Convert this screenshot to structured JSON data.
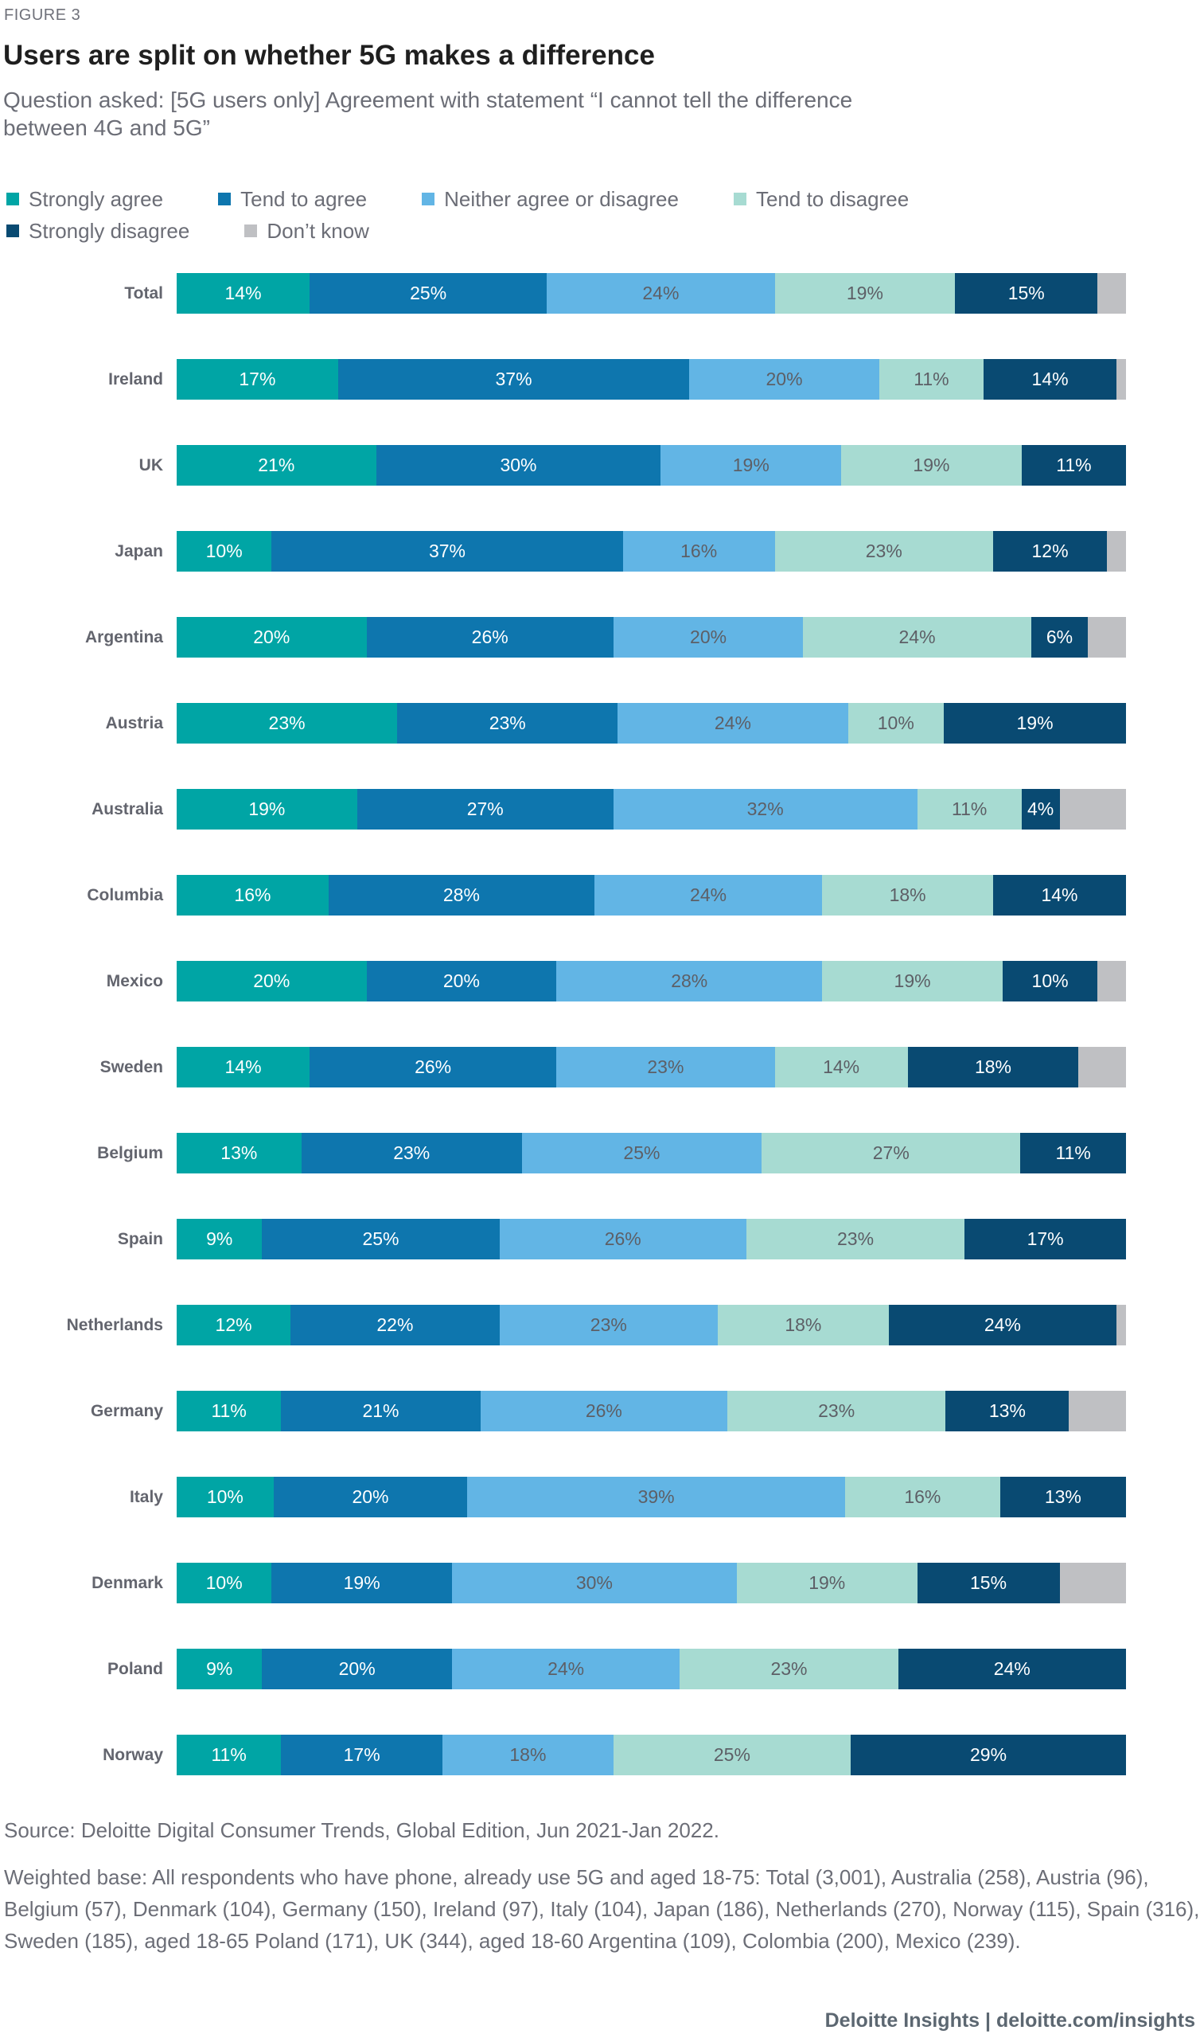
{
  "header": {
    "figure_label": "FIGURE 3",
    "title": "Users are split on whether 5G makes a difference",
    "subtitle_lines": [
      "Question asked: [5G users only] Agreement with statement “I cannot tell the difference",
      "between 4G and 5G”"
    ]
  },
  "colors": {
    "strongly_agree": "#00A5A5",
    "tend_to_agree": "#0E76AE",
    "neither": "#62B5E5",
    "tend_to_disagree": "#A7DBD2",
    "strongly_disagree": "#094A72",
    "dont_know": "#BFC0C3",
    "value_text_light": "#FFFFFF",
    "value_text_dark": "#5D5F66"
  },
  "legend": {
    "rows": [
      [
        {
          "label": "Strongly agree",
          "color": "#00A5A5"
        },
        {
          "label": "Tend to agree",
          "color": "#0E76AE"
        },
        {
          "label": "Neither agree or disagree",
          "color": "#62B5E5"
        },
        {
          "label": "Tend to disagree",
          "color": "#A7DBD2"
        }
      ],
      [
        {
          "label": "Strongly disagree",
          "color": "#094A72"
        },
        {
          "label": "Don’t know",
          "color": "#BFC0C3"
        }
      ]
    ]
  },
  "chart_data": {
    "type": "bar",
    "orientation": "horizontal",
    "stacked": true,
    "value_suffix": "%",
    "label_min": 4,
    "categories": [
      "Total",
      "Ireland",
      "UK",
      "Japan",
      "Argentina",
      "Austria",
      "Australia",
      "Columbia",
      "Mexico",
      "Sweden",
      "Belgium",
      "Spain",
      "Netherlands",
      "Germany",
      "Italy",
      "Denmark",
      "Poland",
      "Norway"
    ],
    "series": [
      {
        "name": "Strongly agree",
        "color": "#00A5A5",
        "text": "light",
        "show_labels": true,
        "values": [
          14,
          17,
          21,
          10,
          20,
          23,
          19,
          16,
          20,
          14,
          13,
          9,
          12,
          11,
          10,
          10,
          9,
          11
        ]
      },
      {
        "name": "Tend to agree",
        "color": "#0E76AE",
        "text": "light",
        "show_labels": true,
        "values": [
          25,
          37,
          30,
          37,
          26,
          23,
          27,
          28,
          20,
          26,
          23,
          25,
          22,
          21,
          20,
          19,
          20,
          17
        ]
      },
      {
        "name": "Neither agree or disagree",
        "color": "#62B5E5",
        "text": "dark",
        "show_labels": true,
        "values": [
          24,
          20,
          19,
          16,
          20,
          24,
          32,
          24,
          28,
          23,
          25,
          26,
          23,
          26,
          39,
          30,
          24,
          18
        ]
      },
      {
        "name": "Tend to disagree",
        "color": "#A7DBD2",
        "text": "dark",
        "show_labels": true,
        "values": [
          19,
          11,
          19,
          23,
          24,
          10,
          11,
          18,
          19,
          14,
          27,
          23,
          18,
          23,
          16,
          19,
          23,
          25
        ]
      },
      {
        "name": "Strongly disagree",
        "color": "#094A72",
        "text": "light",
        "show_labels": true,
        "values": [
          15,
          14,
          11,
          12,
          6,
          19,
          4,
          14,
          10,
          18,
          11,
          17,
          24,
          13,
          13,
          15,
          24,
          29
        ]
      },
      {
        "name": "Don’t know",
        "color": "#BFC0C3",
        "text": "dark",
        "show_labels": false,
        "values": [
          3,
          1,
          0,
          2,
          4,
          0,
          7,
          0,
          3,
          5,
          0,
          0,
          1,
          6,
          0,
          7,
          0,
          0
        ]
      }
    ]
  },
  "footnotes": {
    "source": "Source: Deloitte Digital Consumer Trends, Global Edition, Jun 2021-Jan 2022.",
    "weighted_base_lines": [
      "Weighted base: All respondents who have phone, already use 5G and aged 18-75: Total (3,001), Australia (258), Austria (96),",
      "Belgium (57), Denmark (104), Germany (150), Ireland (97), Italy (104), Japan (186), Netherlands (270), Norway (115), Spain (316),",
      "Sweden (185), aged 18-65 Poland (171), UK (344), aged 18-60 Argentina (109), Colombia (200), Mexico (239)."
    ]
  },
  "footer": {
    "branding": "Deloitte Insights | deloitte.com/insights"
  }
}
